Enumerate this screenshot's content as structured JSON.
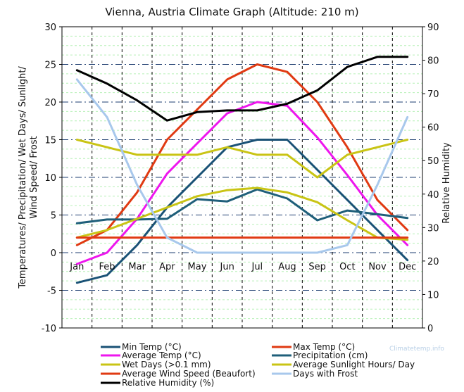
{
  "chart_data": {
    "type": "line",
    "title": "Vienna, Austria Climate Graph (Altitude: 210 m)",
    "ylabel_left": "Temperatures/ Precipitation/ Wet Days/ Sunlight/ Wind Speed/ Frost",
    "ylabel_right": "Relative Humidity",
    "watermark": "Climatetemp.info",
    "categories": [
      "Jan",
      "Feb",
      "Mar",
      "Apr",
      "May",
      "Jun",
      "Jul",
      "Aug",
      "Sep",
      "Oct",
      "Nov",
      "Dec"
    ],
    "ylim_left": [
      -10,
      30
    ],
    "yticks_left": [
      "-10",
      "-5",
      "0",
      "5",
      "10",
      "15",
      "20",
      "25",
      "30"
    ],
    "ylim_right": [
      0,
      90
    ],
    "yticks_right": [
      "0",
      "10",
      "20",
      "30",
      "40",
      "50",
      "60",
      "70",
      "80",
      "90"
    ],
    "grid": true,
    "legend_position": "bottom",
    "series": [
      {
        "name": "Min Temp (°C)",
        "color": "#1a5276",
        "axis": "left",
        "values": [
          -4,
          -3,
          1,
          6,
          10,
          14,
          15,
          15,
          11,
          7,
          3,
          -1
        ]
      },
      {
        "name": "Max Temp (°C)",
        "color": "#e03a12",
        "axis": "left",
        "values": [
          1,
          3,
          8,
          15,
          19,
          23,
          25,
          24,
          20,
          14,
          7,
          3
        ]
      },
      {
        "name": "Average Temp (°C)",
        "color": "#ee16ee",
        "axis": "left",
        "values": [
          -1.5,
          0,
          4.5,
          10.5,
          14.5,
          18.5,
          20,
          19.5,
          15.3,
          10.3,
          5,
          1
        ]
      },
      {
        "name": "Precipitation (cm)",
        "color": "#1f5f7a",
        "axis": "left",
        "values": [
          3.9,
          4.4,
          4.4,
          4.5,
          7.1,
          6.8,
          8.4,
          7.2,
          4.3,
          5.6,
          5.1,
          4.6
        ]
      },
      {
        "name": "Wet Days (>0.1 mm)",
        "color": "#c9c414",
        "axis": "left",
        "values": [
          15,
          14,
          13,
          13,
          13,
          14,
          13,
          13,
          10,
          13,
          14,
          15
        ]
      },
      {
        "name": "Average Sunlight Hours/ Day",
        "color": "#c9c414",
        "axis": "left",
        "values": [
          2,
          3,
          4.5,
          6,
          7.5,
          8.3,
          8.6,
          8,
          6.7,
          4.3,
          2,
          1.7
        ]
      },
      {
        "name": "Average Wind Speed (Beaufort)",
        "color": "#e03a12",
        "axis": "left",
        "values": [
          2,
          2,
          2,
          2,
          2,
          2,
          2,
          2,
          2,
          2,
          2,
          2
        ]
      },
      {
        "name": "Days with Frost",
        "color": "#a8c8ec",
        "axis": "left",
        "values": [
          23,
          18,
          9,
          2,
          0,
          0,
          0,
          0,
          0,
          1,
          9,
          18
        ]
      },
      {
        "name": "Relative Humidity (%)",
        "color": "#000000",
        "axis": "right",
        "values": [
          77,
          73,
          68,
          62,
          64.5,
          65,
          65,
          67,
          71,
          78,
          81,
          81
        ]
      }
    ]
  }
}
